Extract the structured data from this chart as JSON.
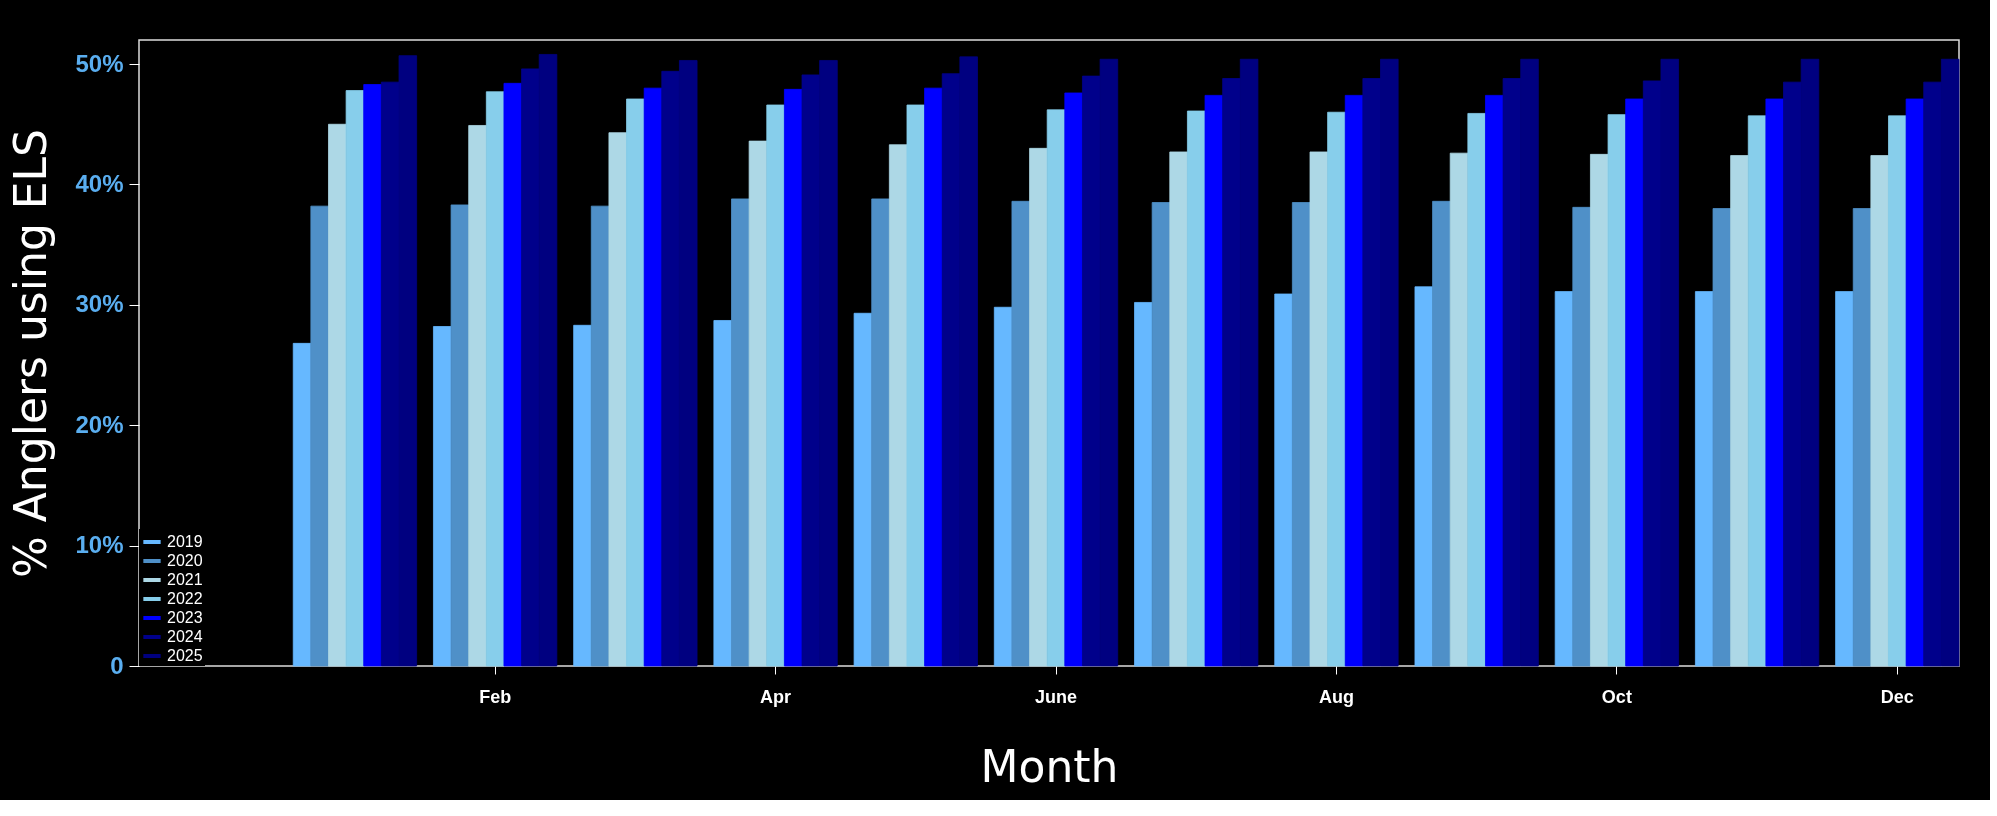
{
  "chart_data": {
    "type": "bar",
    "xlabel": "Month",
    "ylabel": "% Anglers using ELS",
    "categories": [
      null,
      "Feb",
      null,
      "Apr",
      null,
      "June",
      null,
      "Aug",
      null,
      "Oct",
      null,
      "Dec"
    ],
    "series": [
      {
        "name": "2019",
        "color": "#66b8ff",
        "values": [
          26.8,
          28.2,
          28.3,
          28.7,
          29.3,
          29.8,
          30.2,
          30.9,
          31.5,
          31.1,
          31.1,
          31.1
        ]
      },
      {
        "name": "2020",
        "color": "#4f90c8",
        "values": [
          38.2,
          38.3,
          38.2,
          38.8,
          38.8,
          38.6,
          38.5,
          38.5,
          38.6,
          38.1,
          38.0,
          38.0
        ]
      },
      {
        "name": "2021",
        "color": "#add8e6",
        "values": [
          45.0,
          44.9,
          44.3,
          43.6,
          43.3,
          43.0,
          42.7,
          42.7,
          42.6,
          42.5,
          42.4,
          42.4
        ]
      },
      {
        "name": "2022",
        "color": "#87ceeb",
        "values": [
          47.8,
          47.7,
          47.1,
          46.6,
          46.6,
          46.2,
          46.1,
          46.0,
          45.9,
          45.8,
          45.7,
          45.7
        ]
      },
      {
        "name": "2023",
        "color": "#0000ff",
        "values": [
          48.3,
          48.4,
          48.0,
          47.9,
          48.0,
          47.6,
          47.4,
          47.4,
          47.4,
          47.1,
          47.1,
          47.1
        ]
      },
      {
        "name": "2024",
        "color": "#00008b",
        "values": [
          48.5,
          49.6,
          49.4,
          49.1,
          49.2,
          49.0,
          48.8,
          48.8,
          48.8,
          48.6,
          48.5,
          48.5
        ]
      },
      {
        "name": "2025",
        "color": "#000080",
        "values": [
          50.7,
          50.8,
          50.3,
          50.3,
          50.6,
          50.4,
          50.4,
          50.4,
          50.4,
          50.4,
          50.4,
          50.4
        ]
      }
    ],
    "ylim": [
      0,
      52
    ],
    "yticks": [
      {
        "value": 0,
        "label": "0"
      },
      {
        "value": 10,
        "label": "10%"
      },
      {
        "value": 20,
        "label": "20%"
      },
      {
        "value": 30,
        "label": "30%"
      },
      {
        "value": 40,
        "label": "40%"
      },
      {
        "value": 50,
        "label": "50%"
      }
    ],
    "grid": false,
    "legend": "bottom left"
  }
}
